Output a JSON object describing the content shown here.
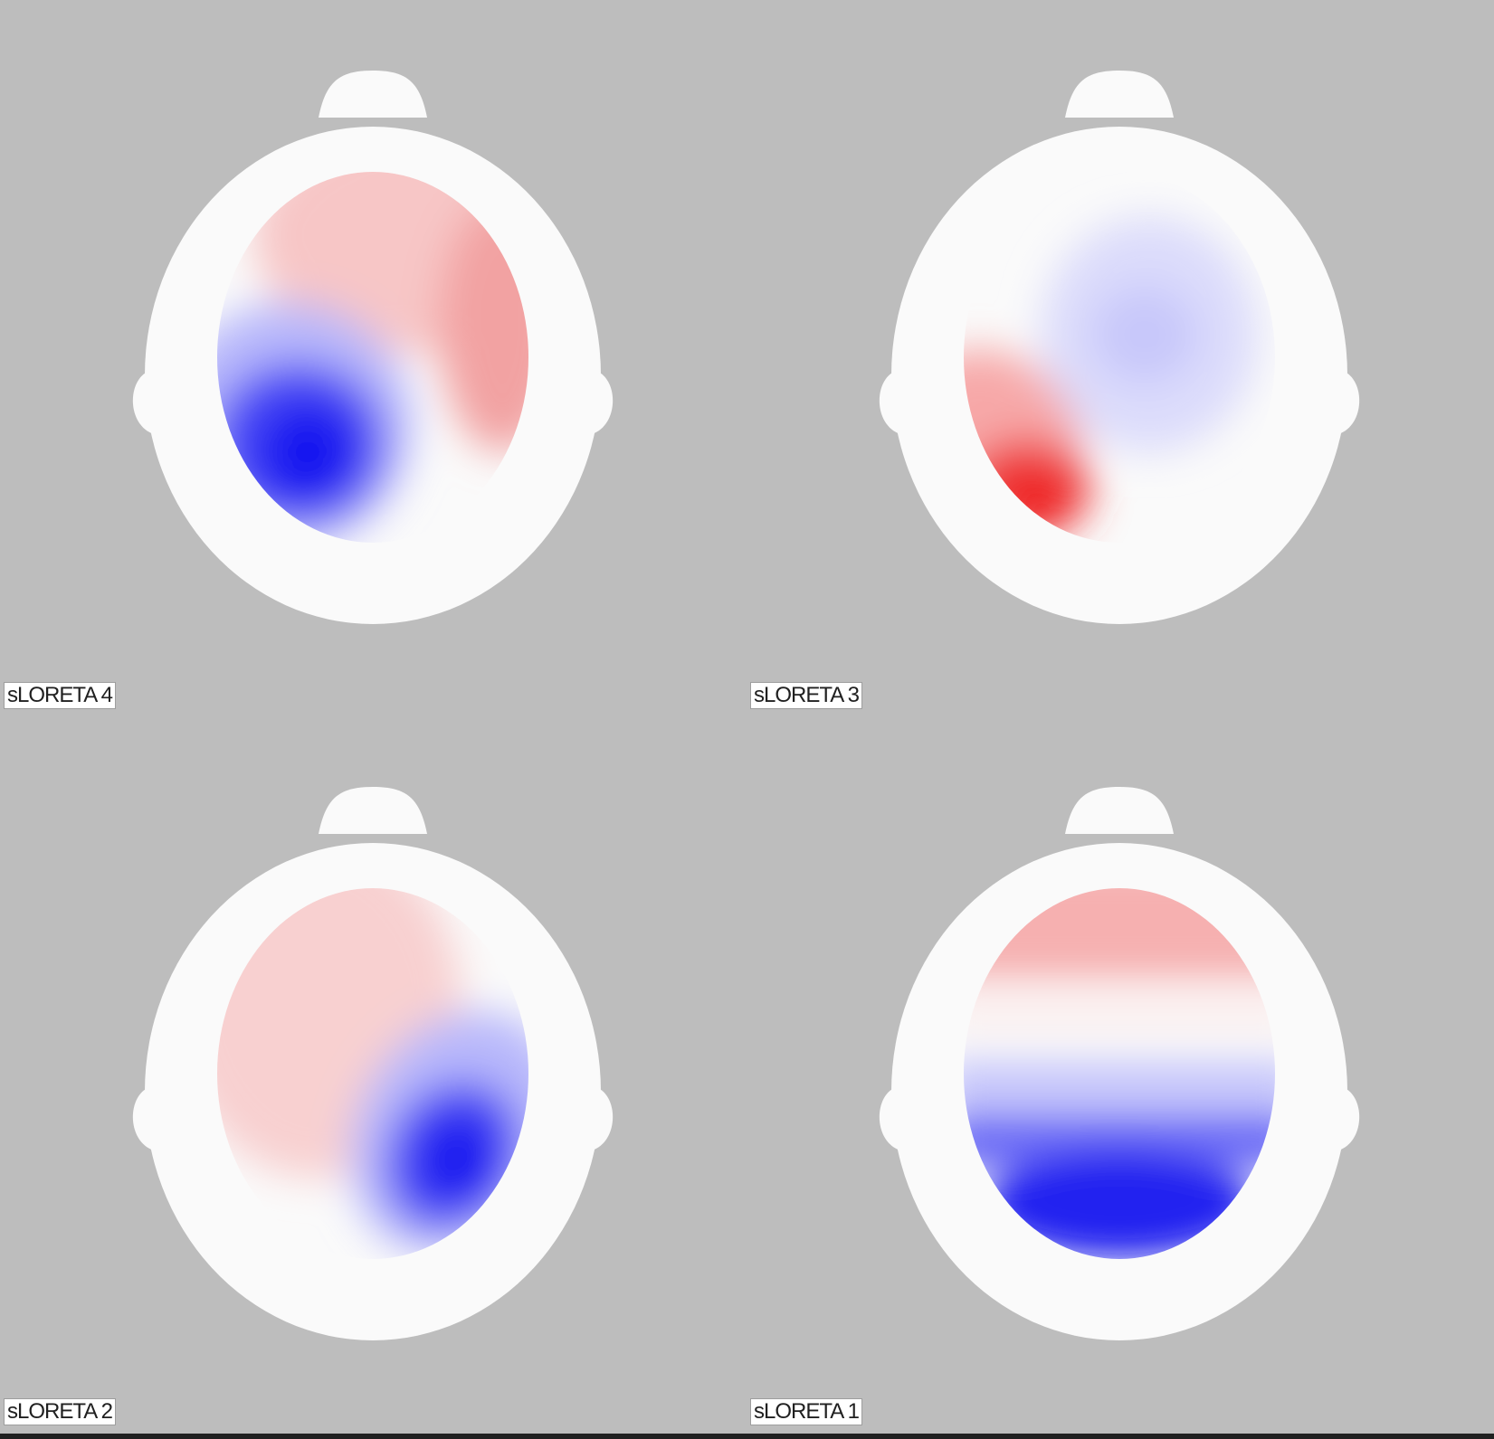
{
  "panels": [
    {
      "label": "sLORETA 4",
      "pattern": "sloreta-4",
      "position": "top-left"
    },
    {
      "label": "sLORETA 3",
      "pattern": "sloreta-3",
      "position": "top-right"
    },
    {
      "label": "sLORETA 2",
      "pattern": "sloreta-2",
      "position": "bottom-left"
    },
    {
      "label": "sLORETA 1",
      "pattern": "sloreta-1",
      "position": "bottom-right"
    }
  ],
  "colors": {
    "background": "#bdbdbd",
    "head": "#fafafa",
    "positive": "#ff1a1a",
    "negative": "#1a1aff"
  }
}
